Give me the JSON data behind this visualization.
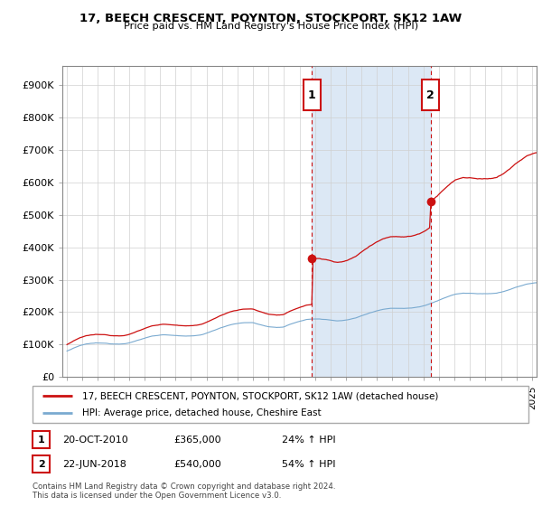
{
  "title": "17, BEECH CRESCENT, POYNTON, STOCKPORT, SK12 1AW",
  "subtitle": "Price paid vs. HM Land Registry's House Price Index (HPI)",
  "ylabel_ticks": [
    "£0",
    "£100K",
    "£200K",
    "£300K",
    "£400K",
    "£500K",
    "£600K",
    "£700K",
    "£800K",
    "£900K"
  ],
  "ytick_values": [
    0,
    100000,
    200000,
    300000,
    400000,
    500000,
    600000,
    700000,
    800000,
    900000
  ],
  "ylim": [
    0,
    960000
  ],
  "xlim_start": 1994.7,
  "xlim_end": 2025.3,
  "hpi_color": "#7aaad0",
  "price_color": "#cc1111",
  "bg_color": "#dce8f5",
  "dashed_color": "#cc1111",
  "transaction1": {
    "date_num": 2010.8,
    "price": 365000,
    "label": "1",
    "date_str": "20-OCT-2010",
    "pct": "24%"
  },
  "transaction2": {
    "date_num": 2018.47,
    "price": 540000,
    "label": "2",
    "date_str": "22-JUN-2018",
    "pct": "54%"
  },
  "legend_line1": "17, BEECH CRESCENT, POYNTON, STOCKPORT, SK12 1AW (detached house)",
  "legend_line2": "HPI: Average price, detached house, Cheshire East",
  "footnote": "Contains HM Land Registry data © Crown copyright and database right 2024.\nThis data is licensed under the Open Government Licence v3.0.",
  "transaction_table": [
    {
      "num": "1",
      "date": "20-OCT-2010",
      "price": "£365,000",
      "pct": "24% ↑ HPI"
    },
    {
      "num": "2",
      "date": "22-JUN-2018",
      "price": "£540,000",
      "pct": "54% ↑ HPI"
    }
  ]
}
